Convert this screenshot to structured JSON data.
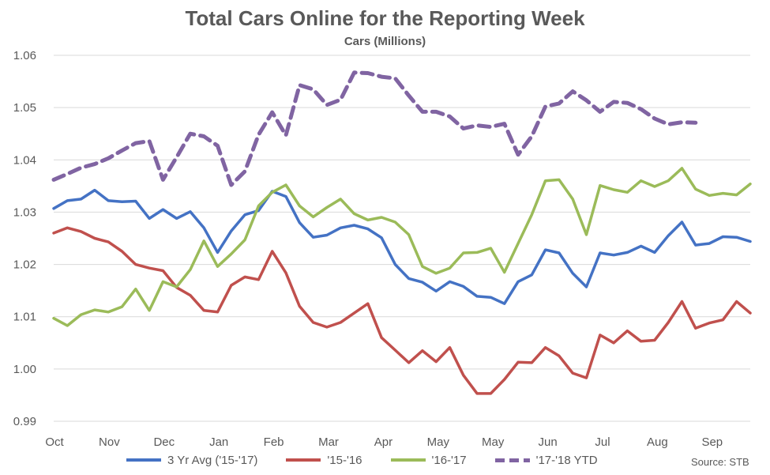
{
  "chart_data": {
    "type": "line",
    "title": "Total Cars Online for the Reporting Week",
    "subtitle": "Cars (Millions)",
    "source": "Source:  STB",
    "ylim": [
      0.99,
      1.06
    ],
    "yticks": [
      "0.99",
      "1.00",
      "1.01",
      "1.02",
      "1.03",
      "1.04",
      "1.05",
      "1.06"
    ],
    "xticks": [
      "Oct",
      "Nov",
      "Dec",
      "Jan",
      "Feb",
      "Mar",
      "Apr",
      "May",
      "May",
      "Jun",
      "Jul",
      "Aug",
      "Sep"
    ],
    "grid": "horizontal",
    "legend_position": "bottom",
    "series": [
      {
        "name": "3 Yr Avg ('15-'17)",
        "color": "#4472C4",
        "dashed": false,
        "values": [
          1.0307,
          1.0322,
          1.0325,
          1.0342,
          1.0322,
          1.032,
          1.0321,
          1.0288,
          1.0305,
          1.0288,
          1.0301,
          1.027,
          1.0223,
          1.0264,
          1.0295,
          1.0303,
          1.034,
          1.033,
          1.028,
          1.0252,
          1.0256,
          1.027,
          1.0275,
          1.0268,
          1.0251,
          1.02,
          1.0173,
          1.0166,
          1.0149,
          1.0167,
          1.0158,
          1.0139,
          1.0137,
          1.0125,
          1.0167,
          1.018,
          1.0228,
          1.0222,
          1.0183,
          1.0157,
          1.0222,
          1.0218,
          1.0223,
          1.0235,
          1.0223,
          1.0255,
          1.0281,
          1.0237,
          1.024,
          1.0253,
          1.0252,
          1.0244
        ]
      },
      {
        "name": "'15-'16",
        "color": "#C0504D",
        "dashed": false,
        "values": [
          1.026,
          1.027,
          1.0263,
          1.025,
          1.0243,
          1.0225,
          1.02,
          1.0193,
          1.0188,
          1.0156,
          1.0141,
          1.0112,
          1.0109,
          1.016,
          1.0176,
          1.0171,
          1.0225,
          1.0184,
          1.012,
          1.0089,
          1.008,
          1.0089,
          1.0107,
          1.0125,
          1.006,
          1.0036,
          1.0012,
          1.0035,
          1.0014,
          1.0041,
          0.9988,
          0.9953,
          0.9953,
          0.998,
          1.0013,
          1.0012,
          1.0041,
          1.0025,
          0.9992,
          0.9983,
          1.0065,
          1.005,
          1.0073,
          1.0053,
          1.0055,
          1.0089,
          1.0129,
          1.0078,
          1.0088,
          1.0094,
          1.0129,
          1.0107
        ]
      },
      {
        "name": "'16-'17",
        "color": "#9BBB59",
        "dashed": false,
        "values": [
          1.0097,
          1.0083,
          1.0104,
          1.0113,
          1.0109,
          1.0119,
          1.0153,
          1.0112,
          1.0167,
          1.0157,
          1.019,
          1.0245,
          1.0196,
          1.022,
          1.0247,
          1.0312,
          1.0338,
          1.0352,
          1.0312,
          1.0291,
          1.0309,
          1.0325,
          1.0297,
          1.0285,
          1.029,
          1.0281,
          1.0257,
          1.0196,
          1.0183,
          1.0193,
          1.0222,
          1.0223,
          1.0231,
          1.0185,
          1.024,
          1.0295,
          1.036,
          1.0362,
          1.0325,
          1.0257,
          1.0351,
          1.0343,
          1.0338,
          1.036,
          1.0349,
          1.036,
          1.0384,
          1.0344,
          1.0332,
          1.0336,
          1.0333,
          1.0354
        ]
      },
      {
        "name": "'17-'18 YTD",
        "color": "#8064A2",
        "dashed": true,
        "values": [
          1.0362,
          1.0373,
          1.0385,
          1.0392,
          1.0403,
          1.0418,
          1.0432,
          1.0436,
          1.0362,
          1.0405,
          1.045,
          1.0445,
          1.0427,
          1.0352,
          1.0378,
          1.0448,
          1.0491,
          1.0447,
          1.0543,
          1.0535,
          1.0505,
          1.0515,
          1.0567,
          1.0566,
          1.0559,
          1.0556,
          1.0523,
          1.0492,
          1.0492,
          1.0483,
          1.046,
          1.0466,
          1.0463,
          1.0469,
          1.041,
          1.0445,
          1.0502,
          1.0508,
          1.0531,
          1.0514,
          1.0492,
          1.0511,
          1.0509,
          1.0497,
          1.0479,
          1.0468,
          1.0472,
          1.0471
        ]
      }
    ]
  }
}
